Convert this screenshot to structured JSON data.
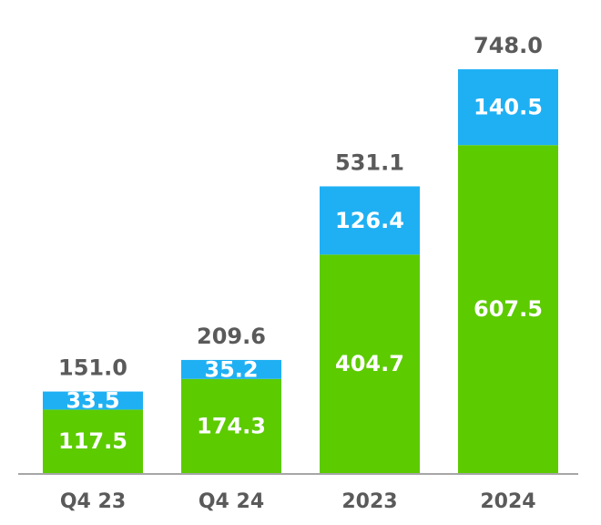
{
  "chart_data": {
    "type": "bar",
    "stacked": true,
    "title": "",
    "xlabel": "",
    "ylabel": "",
    "categories": [
      "Q4 23",
      "Q4 24",
      "2023",
      "2024"
    ],
    "series": [
      {
        "values": [
          117.5,
          174.3,
          404.7,
          607.5
        ],
        "color": "#5ccb00"
      },
      {
        "values": [
          33.5,
          35.2,
          126.4,
          140.5
        ],
        "color": "#1fb0f3"
      }
    ],
    "totals": [
      151.0,
      209.6,
      531.1,
      748.0
    ],
    "total_labels": [
      "151.0",
      "209.6",
      "531.1",
      "748.0"
    ],
    "segment_labels": [
      [
        "117.5",
        "174.3",
        "404.7",
        "607.5"
      ],
      [
        "33.5",
        "35.2",
        "126.4",
        "140.5"
      ]
    ],
    "ylim": [
      0,
      748.0
    ],
    "grid": false,
    "legend": "none",
    "axis_color": "#a6a6a6",
    "total_label_color": "#5a5a5a",
    "segment_label_color": "#ffffff"
  }
}
